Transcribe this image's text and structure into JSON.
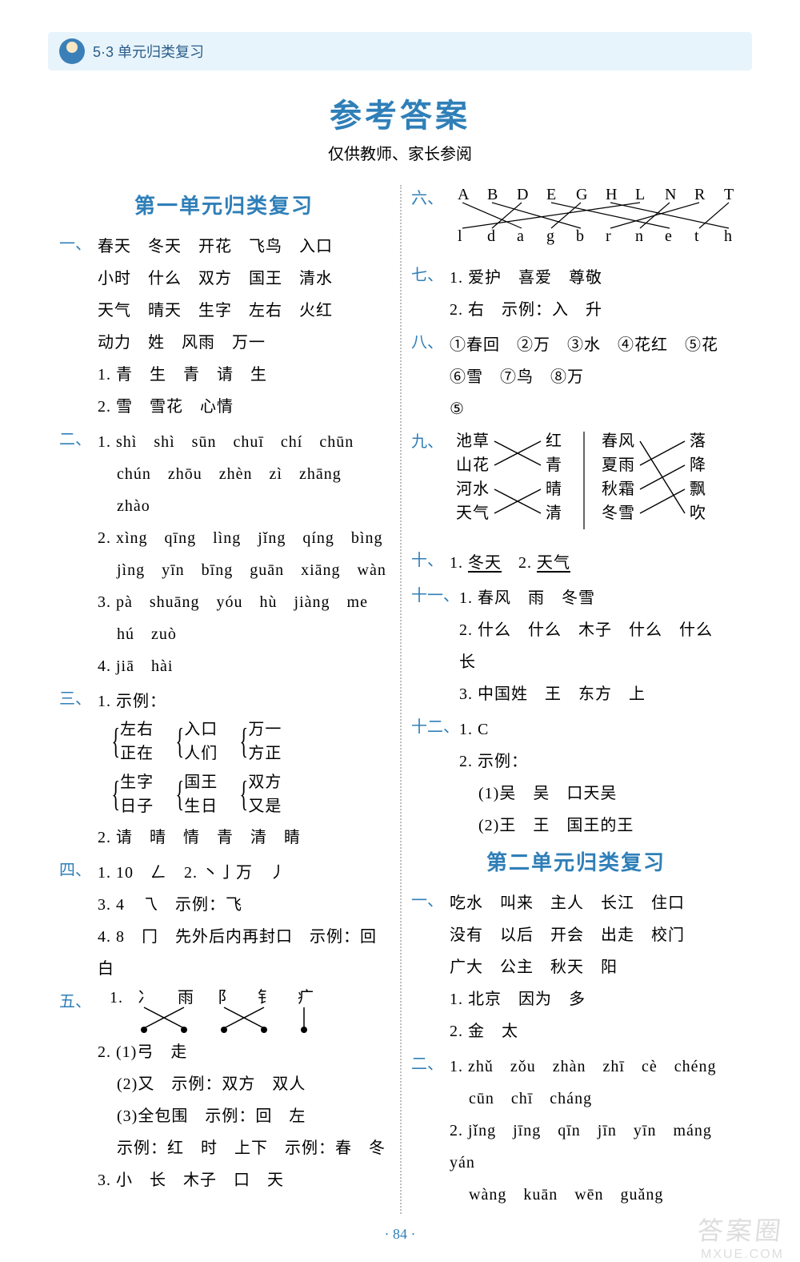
{
  "header": {
    "label": "5·3 单元归类复习"
  },
  "title": "参考答案",
  "subtitle": "仅供教师、家长参阅",
  "page_number": "· 84 ·",
  "watermark": "答案圈",
  "watermark2": "MXUE.COM",
  "colors": {
    "header_bg": "#e8f4fb",
    "accent": "#2f7fb8",
    "divider": "#bdbdbd",
    "text": "#000000",
    "bg": "#ffffff"
  },
  "unit1_title": "第一单元归类复习",
  "unit2_title": "第二单元归类复习",
  "q1": {
    "label": "一、",
    "lines": [
      "春天　冬天　开花　飞鸟　入口",
      "小时　什么　双方　国王　清水",
      "天气　晴天　生字　左右　火红",
      "动力　姓　风雨　万一"
    ],
    "sub1": "1. 青　生　青　请　生",
    "sub2": "2. 雪　雪花　心情"
  },
  "q2": {
    "label": "二、",
    "s1a": "1. shì　shì　sūn　chuī　chí　chūn",
    "s1b": "chún　zhōu　zhèn　zì　zhāng　zhào",
    "s2a": "2. xìng　qīng　lìng　jǐng　qíng　bìng",
    "s2b": "jìng　yīn　bīng　guān　xiāng　wàn",
    "s3a": "3. pà　shuāng　yóu　hù　jiàng　me",
    "s3b": "hú　zuò",
    "s4": "4. jiā　hài"
  },
  "q3": {
    "label": "三、",
    "s1": "1. 示例：",
    "pairs": [
      [
        "左右",
        "正在"
      ],
      [
        "入口",
        "人们"
      ],
      [
        "万一",
        "方正"
      ],
      [
        "生字",
        "日子"
      ],
      [
        "国王",
        "生日"
      ],
      [
        "双方",
        "又是"
      ]
    ],
    "s2": "2. 请　晴　情　青　清　睛"
  },
  "q4": {
    "label": "四、",
    "s1": "1. 10　𠃋　2. 丶亅万　丿",
    "s3": "3. 4　乁　示例：飞",
    "s4": "4. 8　冂　先外后内再封口　示例：回　白"
  },
  "q5": {
    "label": "五、",
    "diagram_top": [
      "冫",
      "雨",
      "阝",
      "钅",
      "疒"
    ],
    "s2_1": "(1)弓　走",
    "s2_2": "(2)又　示例：双方　双人",
    "s2_3": "(3)全包围　示例：回　左",
    "s2_4": "示例：红　时　上下　示例：春　冬",
    "s3": "3. 小　长　木子　口　天"
  },
  "q6": {
    "label": "六、",
    "top": [
      "A",
      "B",
      "D",
      "E",
      "G",
      "H",
      "L",
      "N",
      "R",
      "T"
    ],
    "bot": [
      "l",
      "d",
      "a",
      "g",
      "b",
      "r",
      "n",
      "e",
      "t",
      "h"
    ]
  },
  "q7": {
    "label": "七、",
    "s1": "1. 爱护　喜爱　尊敬",
    "s2": "2. 右　示例：入　升"
  },
  "q8": {
    "label": "八、",
    "line1": "①春回　②万　③水　④花红　⑤花",
    "line2": "⑥雪　⑦鸟　⑧万",
    "line3": "⑤"
  },
  "q9": {
    "label": "九、",
    "leftA": [
      "池草",
      "山花",
      "河水",
      "天气"
    ],
    "leftB": [
      "红",
      "青",
      "晴",
      "清"
    ],
    "rightA": [
      "春风",
      "夏雨",
      "秋霜",
      "冬雪"
    ],
    "rightB": [
      "落",
      "降",
      "飘",
      "吹"
    ]
  },
  "q10": {
    "label": "十、",
    "text_a": "1. ",
    "u1": "冬天",
    "text_b": "　2. ",
    "u2": "天气"
  },
  "q11": {
    "label": "十一、",
    "s1": "1. 春风　雨　冬雪",
    "s2": "2. 什么　什么　木子　什么　什么　长",
    "s3": "3. 中国姓　王　东方　上"
  },
  "q12": {
    "label": "十二、",
    "s1": "1. C",
    "s2": "2. 示例：",
    "s2_1": "(1)吴　吴　口天吴",
    "s2_2": "(2)王　王　国王的王"
  },
  "u2q1": {
    "label": "一、",
    "lines": [
      "吃水　叫来　主人　长江　住口",
      "没有　以后　开会　出走　校门",
      "广大　公主　秋天　阳"
    ],
    "sub1": "1. 北京　因为　多",
    "sub2": "2. 金　太"
  },
  "u2q2": {
    "label": "二、",
    "s1a": "1. zhǔ　zǒu　zhàn　zhī　cè　chéng",
    "s1b": "cūn　chī　cháng",
    "s2a": "2. jǐng　jīng　qīn　jīn　yīn　máng　yán",
    "s2b": "wàng　kuān　wēn　guǎng"
  }
}
